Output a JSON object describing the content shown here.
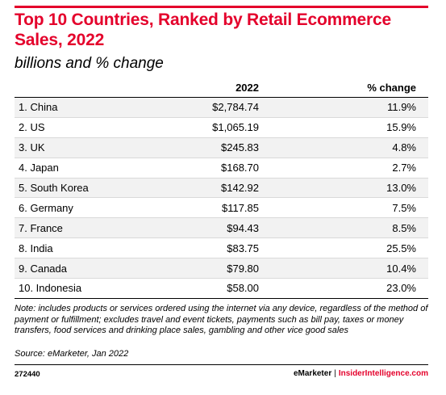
{
  "title": "Top 10 Countries, Ranked by Retail Ecommerce Sales, 2022",
  "subtitle": "billions and % change",
  "header": {
    "value": "2022",
    "change": "% change"
  },
  "chart_data": {
    "type": "table",
    "title": "Top 10 Countries, Ranked by Retail Ecommerce Sales, 2022",
    "subtitle": "billions and % change",
    "columns": [
      "",
      "2022",
      "% change"
    ],
    "rows": [
      {
        "label": "1. China",
        "value": "$2,784.74",
        "change": "11.9%"
      },
      {
        "label": "2. US",
        "value": "$1,065.19",
        "change": "15.9%"
      },
      {
        "label": "3. UK",
        "value": "$245.83",
        "change": "4.8%"
      },
      {
        "label": "4. Japan",
        "value": "$168.70",
        "change": "2.7%"
      },
      {
        "label": "5. South Korea",
        "value": "$142.92",
        "change": "13.0%"
      },
      {
        "label": "6. Germany",
        "value": "$117.85",
        "change": "7.5%"
      },
      {
        "label": "7. France",
        "value": "$94.43",
        "change": "8.5%"
      },
      {
        "label": "8. India",
        "value": "$83.75",
        "change": "25.5%"
      },
      {
        "label": "9. Canada",
        "value": "$79.80",
        "change": "10.4%"
      },
      {
        "label": "10. Indonesia",
        "value": "$58.00",
        "change": "23.0%"
      }
    ]
  },
  "note": "Note: includes products or services ordered using the internet via any device, regardless of the method of payment or fulfillment; excludes travel and event tickets, payments such as bill pay, taxes or money transfers, food services and drinking place sales, gambling and other vice good sales",
  "source": "Source: eMarketer, Jan 2022",
  "footer": {
    "id": "272440",
    "brand_a": "eMarketer",
    "separator": "|",
    "brand_b": "InsiderIntelligence.com"
  },
  "colors": {
    "accent": "#e4002b",
    "row_shade": "#f2f2f2"
  }
}
